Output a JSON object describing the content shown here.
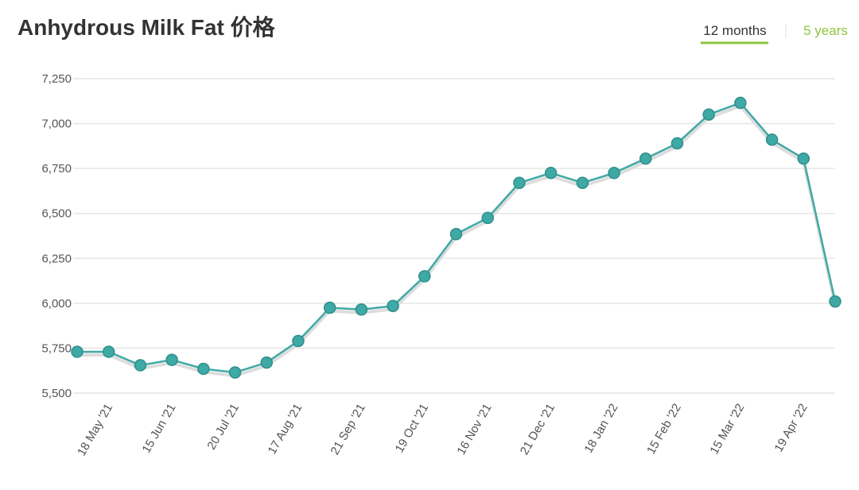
{
  "chart_data": {
    "type": "line",
    "title": "Anhydrous Milk Fat 价格",
    "tabs": [
      "12 months",
      "5 years"
    ],
    "categories": [
      null,
      "18 May '21",
      null,
      "15 Jun '21",
      null,
      "20 Jul '21",
      null,
      "17 Aug '21",
      null,
      "21 Sep '21",
      null,
      "19 Oct '21",
      null,
      "16 Nov '21",
      null,
      "21 Dec '21",
      null,
      "18 Jan '22",
      null,
      "15 Feb '22",
      null,
      "15 Mar '22",
      null,
      "19 Apr '22",
      null
    ],
    "values": [
      5730,
      5730,
      5655,
      5685,
      5635,
      5615,
      5670,
      5790,
      5975,
      5965,
      5985,
      6150,
      6385,
      6475,
      6670,
      6725,
      6670,
      6725,
      6805,
      6890,
      7050,
      7115,
      6910,
      6805,
      6010
    ],
    "color": "#3fa9a5",
    "ylim": [
      5500,
      7250
    ],
    "yticks": [
      {
        "value": 5500,
        "label": "5,500"
      },
      {
        "value": 5750,
        "label": "5,750"
      },
      {
        "value": 6000,
        "label": "6,000"
      },
      {
        "value": 6250,
        "label": "6,250"
      },
      {
        "value": 6500,
        "label": "6,500"
      },
      {
        "value": 6750,
        "label": "6,750"
      },
      {
        "value": 7000,
        "label": "7,000"
      },
      {
        "value": 7250,
        "label": "7,250"
      }
    ],
    "grid": true
  }
}
